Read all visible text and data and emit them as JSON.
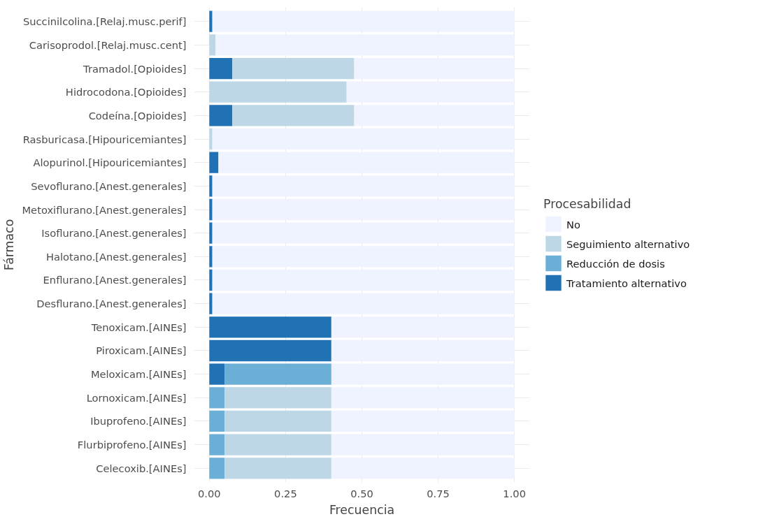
{
  "chart_data": {
    "type": "bar",
    "orientation": "horizontal",
    "stacked": true,
    "xlabel": "Frecuencia",
    "ylabel": "Fármaco",
    "legend_title": "Procesabilidad",
    "legend": "right",
    "grid": true,
    "categories": [
      "Succinilcolina.[Relaj.musc.perif]",
      "Carisoprodol.[Relaj.musc.cent]",
      "Tramadol.[Opioides]",
      "Hidrocodona.[Opioides]",
      "Codeína.[Opioides]",
      "Rasburicasa.[Hipouricemiantes]",
      "Alopurinol.[Hipouricemiantes]",
      "Sevoflurano.[Anest.generales]",
      "Metoxiflurano.[Anest.generales]",
      "Isoflurano.[Anest.generales]",
      "Halotano.[Anest.generales]",
      "Enflurano.[Anest.generales]",
      "Desflurano.[Anest.generales]",
      "Tenoxicam.[AINEs]",
      "Piroxicam.[AINEs]",
      "Meloxicam.[AINEs]",
      "Lornoxicam.[AINEs]",
      "Ibuprofeno.[AINEs]",
      "Flurbiprofeno.[AINEs]",
      "Celecoxib.[AINEs]"
    ],
    "series": [
      {
        "name": "Tratamiento alternativo",
        "color": "#2171b5",
        "values": [
          0.01,
          0,
          0.075,
          0,
          0.075,
          0,
          0.03,
          0.01,
          0.01,
          0.01,
          0.01,
          0.01,
          0.01,
          0.4,
          0.4,
          0.05,
          0,
          0,
          0,
          0
        ]
      },
      {
        "name": "Reducción de dosis",
        "color": "#6baed6",
        "values": [
          0,
          0,
          0,
          0,
          0,
          0,
          0,
          0,
          0,
          0,
          0,
          0,
          0,
          0,
          0,
          0.35,
          0.05,
          0.05,
          0.05,
          0.05
        ]
      },
      {
        "name": "Seguimiento alternativo",
        "color": "#bdd7e7",
        "values": [
          0,
          0.02,
          0.4,
          0.45,
          0.4,
          0.01,
          0,
          0,
          0,
          0,
          0,
          0,
          0,
          0,
          0,
          0,
          0.35,
          0.35,
          0.35,
          0.35
        ]
      },
      {
        "name": "No",
        "color": "#eff3ff",
        "values": [
          0.99,
          0.98,
          0.525,
          0.55,
          0.525,
          0.99,
          0.97,
          0.99,
          0.99,
          0.99,
          0.99,
          0.99,
          0.99,
          0.6,
          0.6,
          0.6,
          0.6,
          0.6,
          0.6,
          0.6
        ]
      }
    ],
    "xlim": [
      -0.05,
      1.05
    ],
    "xticks": [
      {
        "value": 0,
        "label": "0.00"
      },
      {
        "value": 0.25,
        "label": "0.25"
      },
      {
        "value": 0.5,
        "label": "0.50"
      },
      {
        "value": 0.75,
        "label": "0.75"
      },
      {
        "value": 1,
        "label": "1.00"
      }
    ]
  }
}
